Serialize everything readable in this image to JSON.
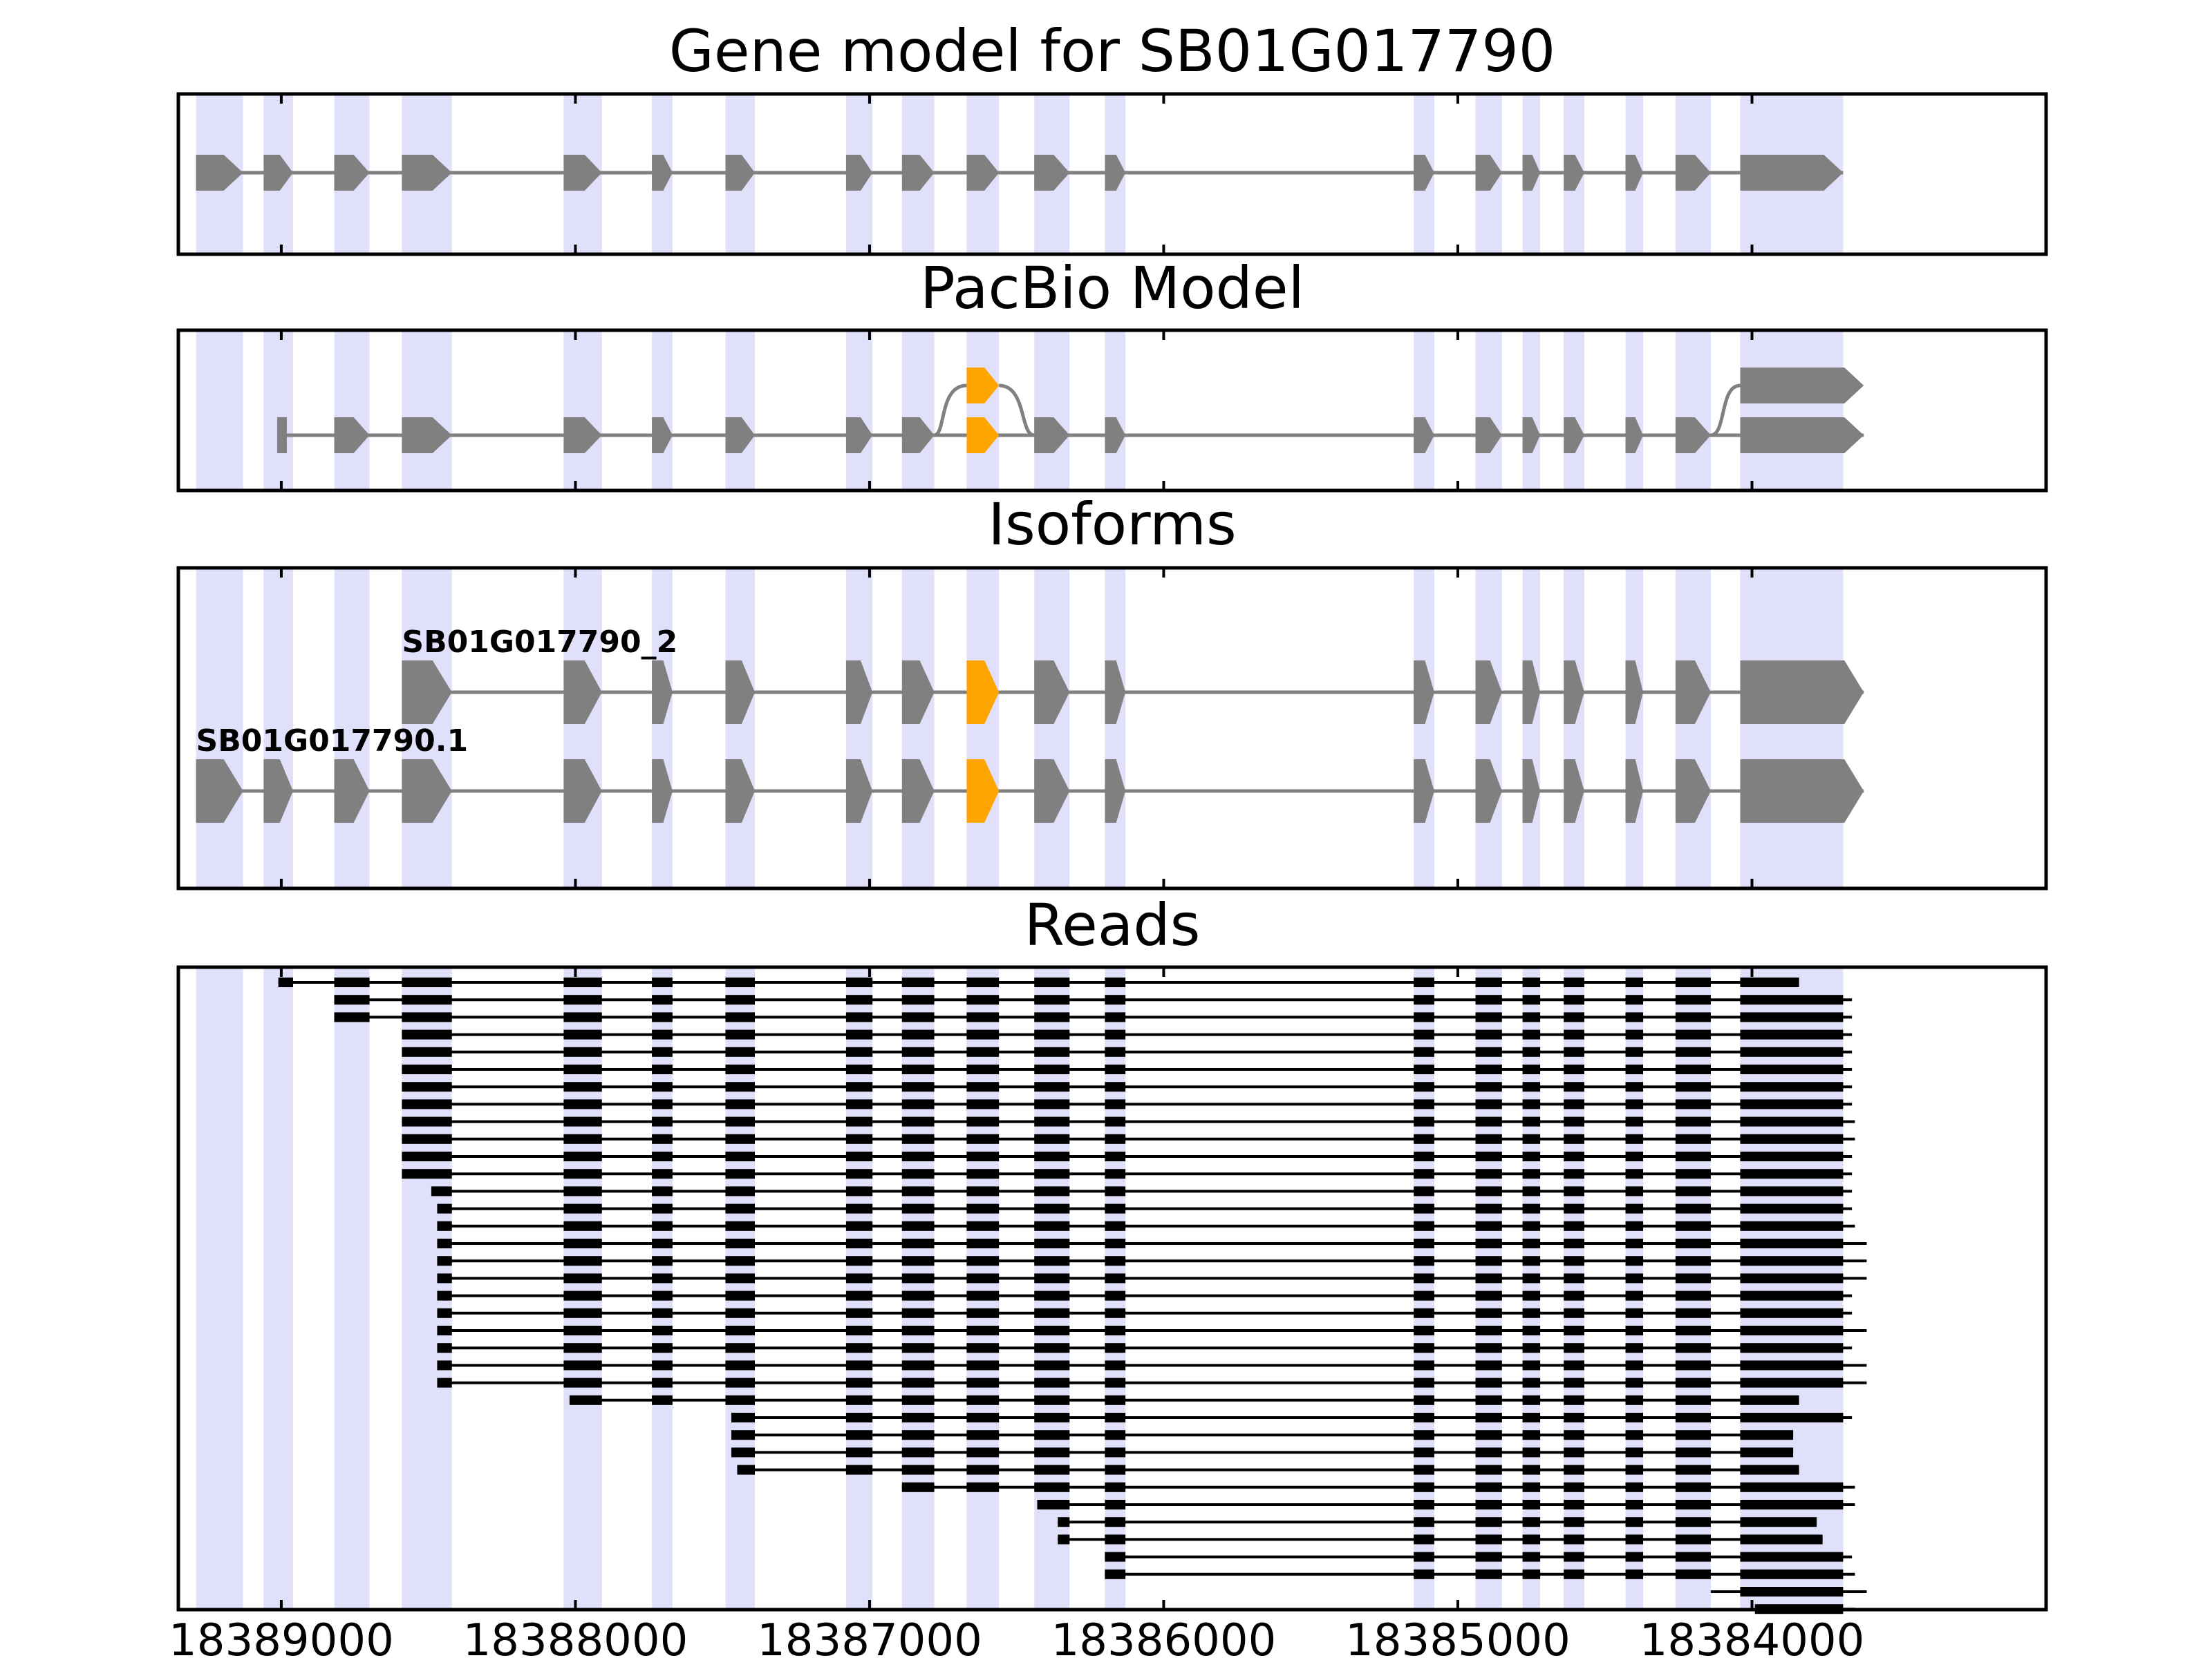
{
  "chart_data": {
    "type": "gene-model-tracks",
    "strand": "-",
    "xlim": [
      18389350,
      18383000
    ],
    "x_ticks": [
      18389000,
      18388000,
      18387000,
      18386000,
      18385000,
      18384000
    ],
    "x_tick_labels": [
      "18389000",
      "18388000",
      "18387000",
      "18386000",
      "18385000",
      "18384000"
    ],
    "colors": {
      "exon": "#808080",
      "alt_exon": "#ffa500",
      "highlight": "#e0e0fa",
      "read": "#000000",
      "intron": "#808080"
    },
    "exons": [
      [
        18389290,
        18389130
      ],
      [
        18389060,
        18388960
      ],
      [
        18388820,
        18388700
      ],
      [
        18388590,
        18388420
      ],
      [
        18388040,
        18387910
      ],
      [
        18387740,
        18387670
      ],
      [
        18387490,
        18387390
      ],
      [
        18387080,
        18386990
      ],
      [
        18386890,
        18386780
      ],
      [
        18386670,
        18386560
      ],
      [
        18386440,
        18386320
      ],
      [
        18386200,
        18386130
      ],
      [
        18385150,
        18385080
      ],
      [
        18384940,
        18384850
      ],
      [
        18384780,
        18384720
      ],
      [
        18384640,
        18384570
      ],
      [
        18384430,
        18384370
      ],
      [
        18384260,
        18384140
      ],
      [
        18384040,
        18383690
      ]
    ],
    "panels": [
      {
        "title": "Gene model for SB01G017790",
        "tracks": [
          {
            "label": "",
            "exons": [
              0,
              1,
              2,
              3,
              4,
              5,
              6,
              7,
              8,
              9,
              10,
              11,
              12,
              13,
              14,
              15,
              16,
              17,
              18
            ],
            "alt": []
          }
        ]
      },
      {
        "title": "PacBio Model",
        "tracks": [
          {
            "label": "",
            "exons": [],
            "alt": [
              9
            ],
            "last_end": 18383620
          },
          {
            "label": "",
            "start": 18389000,
            "exons": [
              2,
              3,
              4,
              5,
              6,
              7,
              8,
              9,
              10,
              11,
              12,
              13,
              14,
              15,
              16,
              17,
              18
            ],
            "alt": [
              9
            ],
            "last_end": 18383620
          }
        ]
      },
      {
        "title": "Isoforms",
        "tracks": [
          {
            "label": "SB01G017790_2",
            "exons": [
              3,
              4,
              5,
              6,
              7,
              8,
              9,
              10,
              11,
              12,
              13,
              14,
              15,
              16,
              17,
              18
            ],
            "alt": [
              9
            ],
            "last_end": 18383620
          },
          {
            "label": "SB01G017790.1",
            "exons": [
              0,
              1,
              2,
              3,
              4,
              5,
              6,
              7,
              8,
              9,
              10,
              11,
              12,
              13,
              14,
              15,
              16,
              17,
              18
            ],
            "alt": [
              9
            ],
            "last_end": 18383620
          }
        ]
      },
      {
        "title": "Reads",
        "reads": [
          {
            "start": 18389010,
            "end": 18383840
          },
          {
            "start": 18388820,
            "end": 18383660
          },
          {
            "start": 18388820,
            "end": 18383660
          },
          {
            "start": 18388590,
            "end": 18383660
          },
          {
            "start": 18388590,
            "end": 18383660
          },
          {
            "start": 18388590,
            "end": 18383660
          },
          {
            "start": 18388590,
            "end": 18383660
          },
          {
            "start": 18388590,
            "end": 18383660
          },
          {
            "start": 18388590,
            "end": 18383650
          },
          {
            "start": 18388590,
            "end": 18383650
          },
          {
            "start": 18388590,
            "end": 18383660
          },
          {
            "start": 18388590,
            "end": 18383660
          },
          {
            "start": 18388490,
            "end": 18383660
          },
          {
            "start": 18388470,
            "end": 18383660
          },
          {
            "start": 18388470,
            "end": 18383650
          },
          {
            "start": 18388470,
            "end": 18383610
          },
          {
            "start": 18388470,
            "end": 18383610
          },
          {
            "start": 18388470,
            "end": 18383610
          },
          {
            "start": 18388470,
            "end": 18383660
          },
          {
            "start": 18388470,
            "end": 18383660
          },
          {
            "start": 18388470,
            "end": 18383610
          },
          {
            "start": 18388470,
            "end": 18383660
          },
          {
            "start": 18388470,
            "end": 18383610
          },
          {
            "start": 18388470,
            "end": 18383610
          },
          {
            "start": 18388020,
            "end": 18383840
          },
          {
            "start": 18387470,
            "end": 18383660
          },
          {
            "start": 18387470,
            "end": 18383860
          },
          {
            "start": 18387470,
            "end": 18383860
          },
          {
            "start": 18387450,
            "end": 18383840
          },
          {
            "start": 18386890,
            "end": 18383650
          },
          {
            "start": 18386430,
            "end": 18383650
          },
          {
            "start": 18386360,
            "end": 18383780
          },
          {
            "start": 18386360,
            "end": 18383760
          },
          {
            "start": 18386200,
            "end": 18383660
          },
          {
            "start": 18386200,
            "end": 18383650
          },
          {
            "start": 18384140,
            "end": 18383610
          },
          {
            "start": 18383990,
            "end": 18383650
          }
        ]
      }
    ]
  }
}
